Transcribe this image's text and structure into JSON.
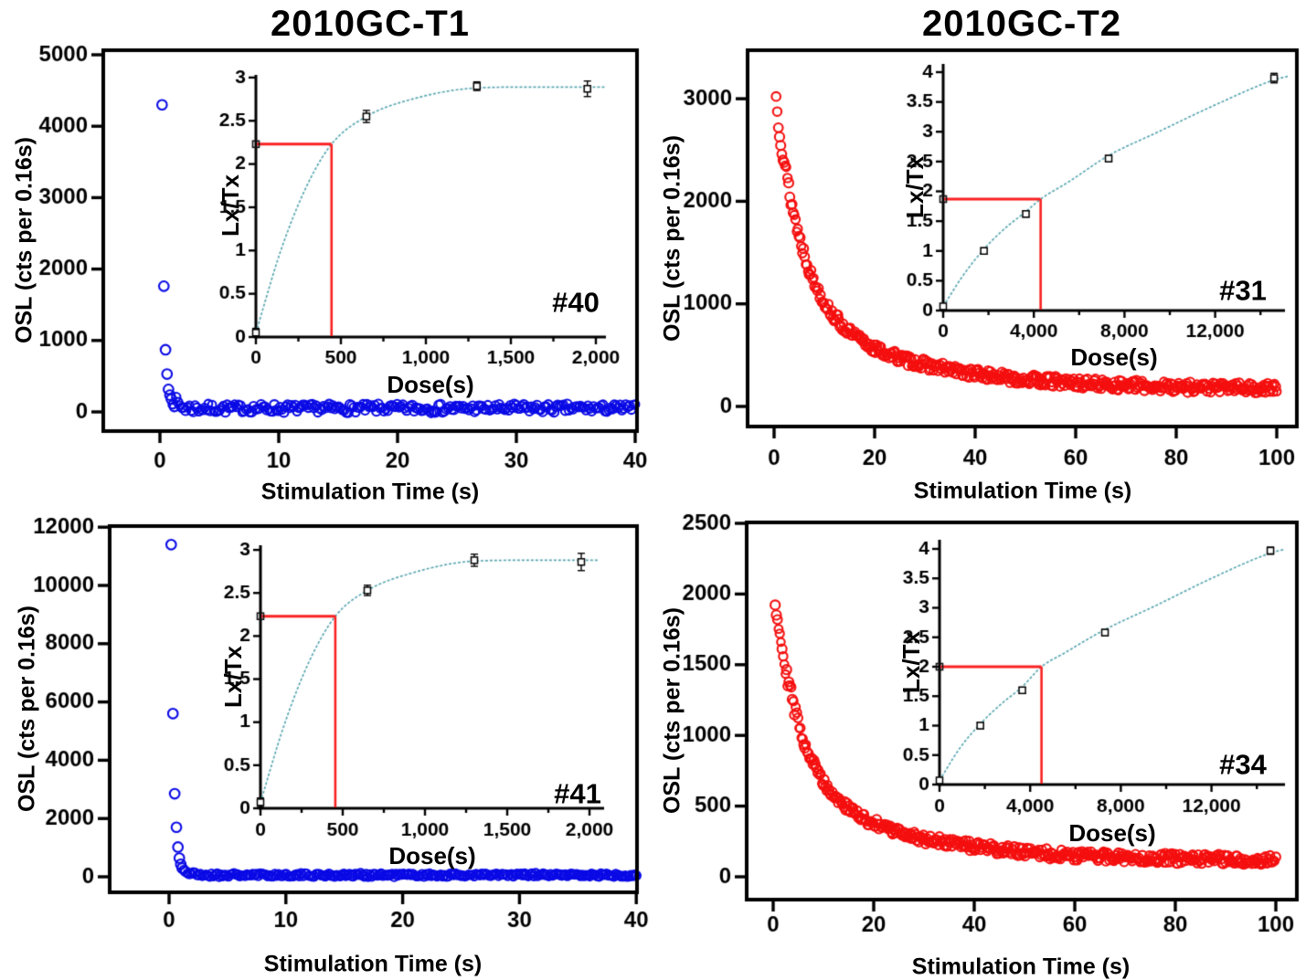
{
  "colors": {
    "axis": "#000000",
    "background": "#ffffff",
    "blue_marker": "#0a0ae6",
    "red_marker": "#f50f0f",
    "dose_curve": "#5ba8b2",
    "guide_red": "#fa2121"
  },
  "chart_data": [
    {
      "id": "top-left",
      "type": "scatter",
      "title": "2010GC-T1",
      "xlabel": "Stimulation Time (s)",
      "ylabel": "OSL (cts per 0.16s)",
      "marker": "open-circle",
      "marker_color": "#0a0ae6",
      "xticks": [
        0,
        10,
        20,
        30,
        40
      ],
      "yticks": [
        0,
        1000,
        2000,
        3000,
        4000,
        5000
      ],
      "xlim": [
        -4.8,
        40.2
      ],
      "ylim": [
        -270,
        5060
      ],
      "decay": {
        "head": [
          [
            0.18,
            4300
          ],
          [
            0.33,
            1760
          ],
          [
            0.47,
            870
          ],
          [
            0.6,
            530
          ],
          [
            0.72,
            315
          ],
          [
            0.84,
            235
          ],
          [
            0.96,
            180
          ]
        ],
        "tail": {
          "t_start": 1.05,
          "t_end": 40,
          "n": 246,
          "bg": 50,
          "amp": 145,
          "tau": 0.45,
          "noise": 60,
          "seed": 7
        }
      },
      "inset": {
        "label": "#40",
        "xlabel": "Dose(s)",
        "ylabel": "Lx/Tx",
        "xticks": [
          0,
          500,
          1000,
          1500,
          2000
        ],
        "xtick_labels": [
          "0",
          "500",
          "1,000",
          "1,500",
          "2,000"
        ],
        "xminors": [
          250,
          750,
          1250,
          1750
        ],
        "yticks": [
          0,
          0.5,
          1,
          1.5,
          2,
          2.5,
          3
        ],
        "ytick_labels": [
          "0",
          "0.5",
          "1",
          "1.5",
          "2",
          "2.5",
          "3"
        ],
        "points": {
          "dose": [
            0,
            650,
            1300,
            1950
          ],
          "lxtx": [
            0.05,
            2.55,
            2.9,
            2.87
          ],
          "err": [
            0.05,
            0.07,
            0.05,
            0.09
          ]
        },
        "natural_lxtx": 2.23,
        "equivalent_dose": 445,
        "curve": [
          [
            0,
            0.05
          ],
          [
            150,
            1.02
          ],
          [
            300,
            1.75
          ],
          [
            445,
            2.23
          ],
          [
            650,
            2.55
          ],
          [
            900,
            2.74
          ],
          [
            1300,
            2.88
          ],
          [
            1600,
            2.89
          ],
          [
            1950,
            2.89
          ],
          [
            2060,
            2.89
          ]
        ],
        "curve_color": "#5ba8b2",
        "guide_color": "#fa2121"
      }
    },
    {
      "id": "top-right",
      "type": "scatter",
      "title": "2010GC-T2",
      "xlabel": "Stimulation Time (s)",
      "ylabel": "OSL (cts per 0.16s)",
      "marker": "open-circle",
      "marker_color": "#f50f0f",
      "xticks": [
        0,
        20,
        40,
        60,
        80,
        100
      ],
      "yticks": [
        0,
        1000,
        2000,
        3000
      ],
      "xlim": [
        -5,
        104
      ],
      "ylim": [
        -195,
        3470
      ],
      "decay": {
        "twoexp": {
          "a1": 2150,
          "tau1": 5,
          "a2": 870,
          "tau2": 23,
          "bg": 165,
          "noise": 52,
          "spread": 1.6,
          "spread_tau": 3,
          "t_start": 0.4,
          "t_end": 100,
          "n": 440,
          "seed": 13
        }
      },
      "inset": {
        "label": "#31",
        "xlabel": "Dose(s)",
        "ylabel": "Lx/Tx",
        "xticks": [
          0,
          4000,
          8000,
          12000
        ],
        "xtick_labels": [
          "0",
          "4,000",
          "8,000",
          "12,000"
        ],
        "xminors": [
          2000,
          6000,
          10000,
          14000
        ],
        "yticks": [
          0,
          0.5,
          1,
          1.5,
          2,
          2.5,
          3,
          3.5,
          4
        ],
        "ytick_labels": [
          "0",
          "0.5",
          "1",
          "1.5",
          "2",
          "2.5",
          "3",
          "3.5",
          "4"
        ],
        "points": {
          "dose": [
            0,
            1800,
            3650,
            7300,
            14600
          ],
          "lxtx": [
            0.07,
            1.0,
            1.62,
            2.55,
            3.9
          ],
          "err": [
            0.04,
            0.05,
            0.05,
            0.05,
            0.08
          ]
        },
        "natural_lxtx": 1.87,
        "equivalent_dose": 4300,
        "curve": [
          [
            0,
            0.07
          ],
          [
            900,
            0.6
          ],
          [
            1800,
            1.03
          ],
          [
            2700,
            1.37
          ],
          [
            3650,
            1.66
          ],
          [
            4300,
            1.87
          ],
          [
            5500,
            2.15
          ],
          [
            7300,
            2.6
          ],
          [
            9500,
            3.0
          ],
          [
            12000,
            3.45
          ],
          [
            14600,
            3.87
          ],
          [
            15200,
            3.93
          ]
        ],
        "curve_color": "#5ba8b2",
        "guide_color": "#fa2121"
      }
    },
    {
      "id": "bottom-left",
      "type": "scatter",
      "title": "",
      "xlabel": "Stimulation Time (s)",
      "ylabel": "OSL (cts per 0.16s)",
      "marker": "open-circle",
      "marker_color": "#0a0ae6",
      "xticks": [
        0,
        10,
        20,
        30,
        40
      ],
      "yticks": [
        0,
        2000,
        4000,
        6000,
        8000,
        10000,
        12000
      ],
      "xlim": [
        -5.1,
        40.2
      ],
      "ylim": [
        -530,
        12050
      ],
      "decay": {
        "head": [
          [
            0.18,
            11400
          ],
          [
            0.33,
            5600
          ],
          [
            0.48,
            2850
          ],
          [
            0.63,
            1700
          ],
          [
            0.76,
            1020
          ],
          [
            0.88,
            640
          ],
          [
            1.0,
            430
          ],
          [
            1.12,
            300
          ]
        ],
        "tail": {
          "t_start": 1.25,
          "t_end": 40,
          "n": 244,
          "bg": 60,
          "amp": 190,
          "tau": 0.45,
          "noise": 58,
          "seed": 21
        }
      },
      "inset": {
        "label": "#41",
        "xlabel": "Dose(s)",
        "ylabel": "Lx/Tx",
        "xticks": [
          0,
          500,
          1000,
          1500,
          2000
        ],
        "xtick_labels": [
          "0",
          "500",
          "1,000",
          "1,500",
          "2,000"
        ],
        "xminors": [
          250,
          750,
          1250,
          1750
        ],
        "yticks": [
          0,
          0.5,
          1,
          1.5,
          2,
          2.5,
          3
        ],
        "ytick_labels": [
          "0",
          "0.5",
          "1",
          "1.5",
          "2",
          "2.5",
          "3"
        ],
        "points": {
          "dose": [
            0,
            650,
            1300,
            1950
          ],
          "lxtx": [
            0.07,
            2.53,
            2.88,
            2.86
          ],
          "err": [
            0.05,
            0.06,
            0.07,
            0.1
          ]
        },
        "natural_lxtx": 2.23,
        "equivalent_dose": 455,
        "curve": [
          [
            0,
            0.07
          ],
          [
            150,
            1.0
          ],
          [
            300,
            1.72
          ],
          [
            455,
            2.23
          ],
          [
            650,
            2.53
          ],
          [
            900,
            2.72
          ],
          [
            1300,
            2.87
          ],
          [
            1600,
            2.88
          ],
          [
            1950,
            2.88
          ],
          [
            2060,
            2.88
          ]
        ],
        "curve_color": "#5ba8b2",
        "guide_color": "#fa2121"
      }
    },
    {
      "id": "bottom-right",
      "type": "scatter",
      "title": "",
      "xlabel": "Stimulation Time (s)",
      "ylabel": "OSL (cts per 0.16s)",
      "marker": "open-circle",
      "marker_color": "#f50f0f",
      "xticks": [
        0,
        20,
        40,
        60,
        80,
        100
      ],
      "yticks": [
        0,
        500,
        1000,
        1500,
        2000,
        2500
      ],
      "xlim": [
        -5.3,
        104
      ],
      "ylim": [
        -160,
        2510
      ],
      "decay": {
        "twoexp": {
          "a1": 1400,
          "tau1": 5,
          "a2": 580,
          "tau2": 23,
          "bg": 110,
          "noise": 36,
          "spread": 1.6,
          "spread_tau": 3,
          "t_start": 0.4,
          "t_end": 100,
          "n": 440,
          "seed": 29
        }
      },
      "inset": {
        "label": "#34",
        "xlabel": "Dose(s)",
        "ylabel": "Lx/Tx",
        "xticks": [
          0,
          4000,
          8000,
          12000
        ],
        "xtick_labels": [
          "0",
          "4,000",
          "8,000",
          "12,000"
        ],
        "xminors": [
          2000,
          6000,
          10000,
          14000
        ],
        "yticks": [
          0,
          0.5,
          1,
          1.5,
          2,
          2.5,
          3,
          3.5,
          4
        ],
        "ytick_labels": [
          "0",
          "0.5",
          "1",
          "1.5",
          "2",
          "2.5",
          "3",
          "3.5",
          "4"
        ],
        "points": {
          "dose": [
            0,
            1800,
            3650,
            7300,
            14600
          ],
          "lxtx": [
            0.07,
            1.0,
            1.6,
            2.58,
            3.97
          ],
          "err": [
            0.04,
            0.05,
            0.05,
            0.05,
            0.06
          ]
        },
        "natural_lxtx": 2.0,
        "equivalent_dose": 4500,
        "curve": [
          [
            0,
            0.07
          ],
          [
            900,
            0.62
          ],
          [
            1800,
            1.03
          ],
          [
            2700,
            1.36
          ],
          [
            3650,
            1.66
          ],
          [
            4500,
            2.0
          ],
          [
            5500,
            2.23
          ],
          [
            7300,
            2.63
          ],
          [
            9500,
            3.03
          ],
          [
            12000,
            3.5
          ],
          [
            14600,
            3.93
          ],
          [
            15200,
            3.99
          ]
        ],
        "curve_color": "#5ba8b2",
        "guide_color": "#fa2121"
      }
    }
  ]
}
